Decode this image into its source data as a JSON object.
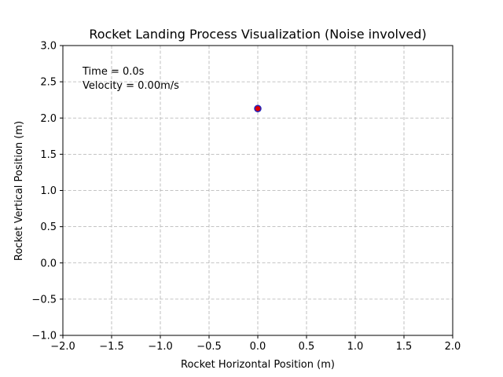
{
  "chart_data": {
    "type": "scatter",
    "title": "Rocket Landing Process Visualization (Noise involved)",
    "xlabel": "Rocket Horizontal Position (m)",
    "ylabel": "Rocket Vertical Position (m)",
    "xlim": [
      -2.0,
      2.0
    ],
    "ylim": [
      -1.0,
      3.0
    ],
    "xticks": [
      -2.0,
      -1.5,
      -1.0,
      -0.5,
      0.0,
      0.5,
      1.0,
      1.5,
      2.0
    ],
    "yticks": [
      -1.0,
      -0.5,
      0.0,
      0.5,
      1.0,
      1.5,
      2.0,
      2.5,
      3.0
    ],
    "grid": true,
    "points": [
      {
        "x": 0.0,
        "y": 2.13,
        "fill": "#dd0000",
        "edge": "#2222bb"
      }
    ],
    "annotations": [
      "Time = 0.0s",
      "Velocity = 0.00m/s"
    ]
  }
}
